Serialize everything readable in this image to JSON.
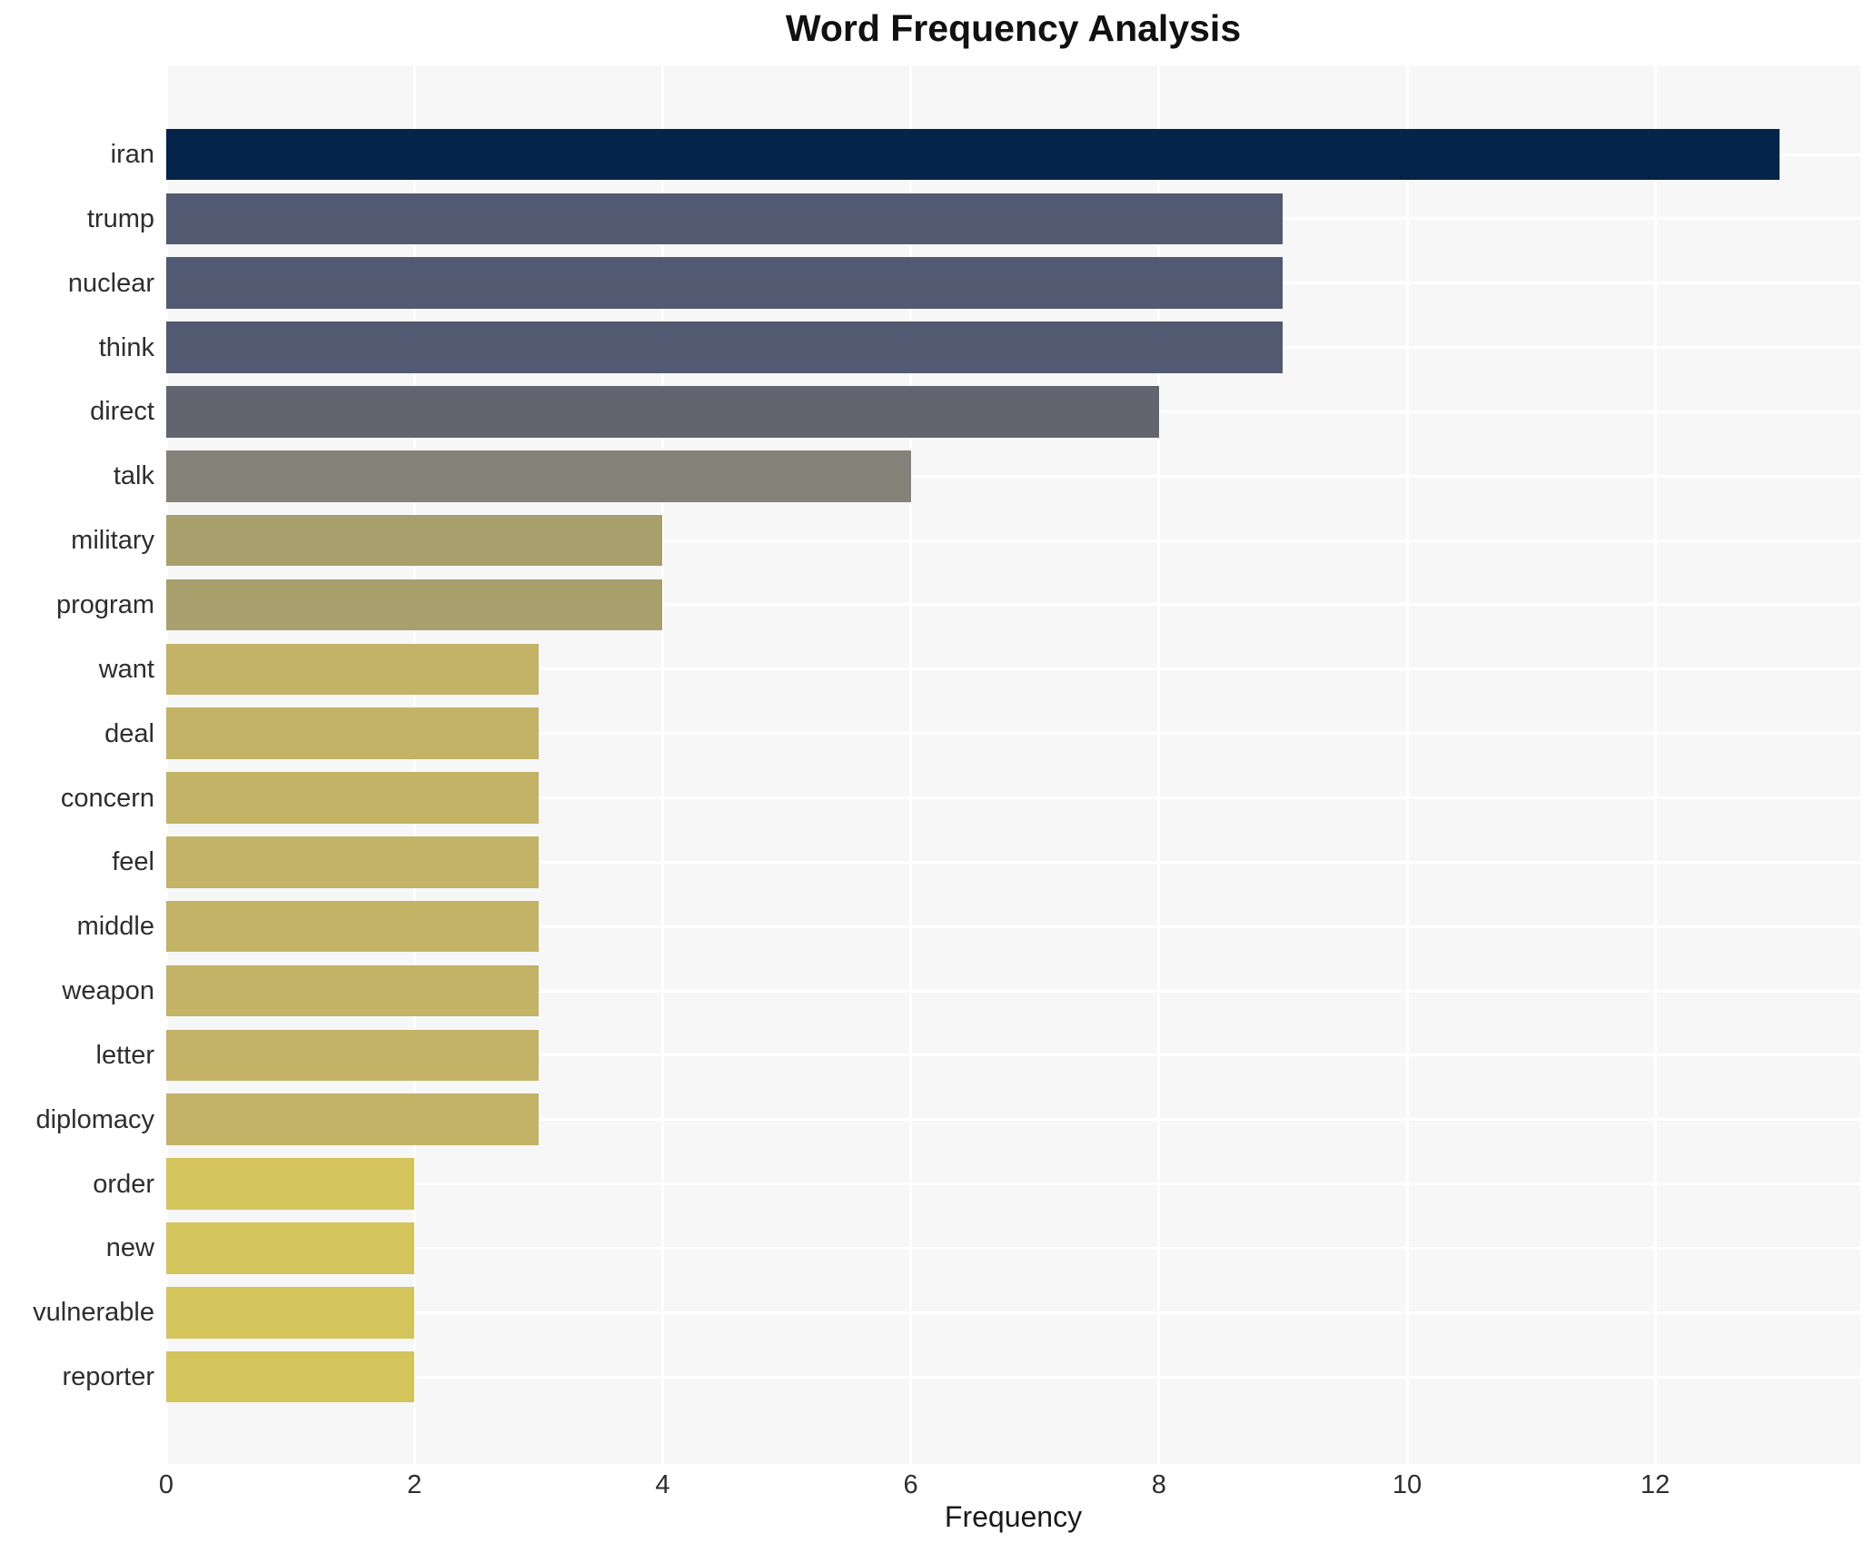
{
  "title": "Word Frequency Analysis",
  "chart_data": {
    "type": "bar",
    "orientation": "horizontal",
    "title": "Word Frequency Analysis",
    "xlabel": "Frequency",
    "ylabel": "",
    "xlim": [
      0,
      13.65
    ],
    "xticks": [
      0,
      2,
      4,
      6,
      8,
      10,
      12
    ],
    "grid": true,
    "legend": "none",
    "plot_background": "#f7f7f7",
    "grid_color": "#ffffff",
    "categories": [
      "iran",
      "trump",
      "nuclear",
      "think",
      "direct",
      "talk",
      "military",
      "program",
      "want",
      "deal",
      "concern",
      "feel",
      "middle",
      "weapon",
      "letter",
      "diplomacy",
      "order",
      "new",
      "vulnerable",
      "reporter"
    ],
    "values": [
      13,
      9,
      9,
      9,
      8,
      6,
      4,
      4,
      3,
      3,
      3,
      3,
      3,
      3,
      3,
      3,
      2,
      2,
      2,
      2
    ],
    "bar_colors": [
      "#042449",
      "#515a70",
      "#515a70",
      "#515a70",
      "#62656f",
      "#848278",
      "#a8a06c",
      "#a8a06c",
      "#c2b366",
      "#c2b366",
      "#c2b366",
      "#c2b366",
      "#c2b366",
      "#c2b366",
      "#c2b366",
      "#c2b366",
      "#d4c45c",
      "#d4c45c",
      "#d4c45c",
      "#d4c45c"
    ]
  }
}
